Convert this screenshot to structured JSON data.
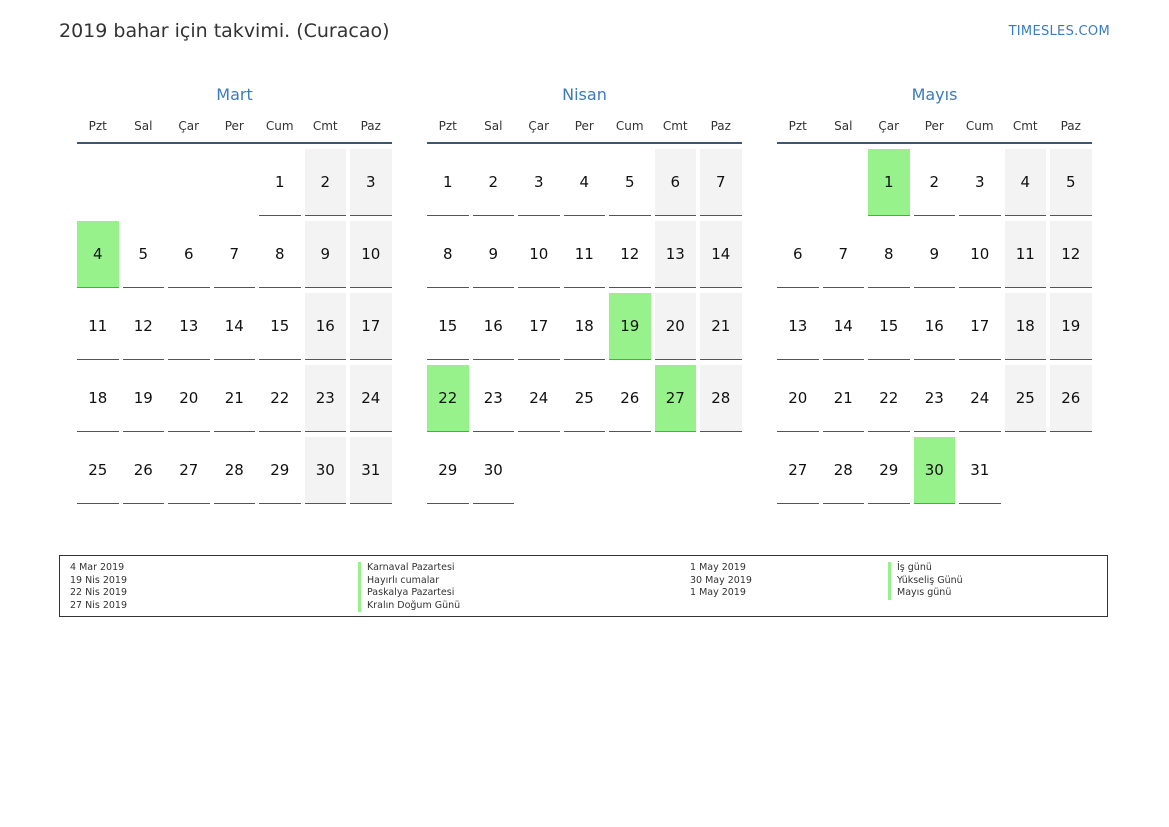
{
  "header": {
    "title": "2019 bahar için takvimi. (Curacao)",
    "site": "TIMESLES.COM"
  },
  "weekdays": [
    "Pzt",
    "Sal",
    "Çar",
    "Per",
    "Cum",
    "Cmt",
    "Paz"
  ],
  "months": [
    {
      "name": "Mart",
      "offset": 4,
      "days": 31,
      "holidays": [
        4
      ]
    },
    {
      "name": "Nisan",
      "offset": 0,
      "days": 30,
      "holidays": [
        19,
        22,
        27
      ]
    },
    {
      "name": "Mayıs",
      "offset": 2,
      "days": 31,
      "holidays": [
        1,
        30
      ]
    }
  ],
  "legend": {
    "left": [
      {
        "date": "4 Mar 2019",
        "name": "Karnaval Pazartesi"
      },
      {
        "date": "19 Nis 2019",
        "name": "Hayırlı cumalar"
      },
      {
        "date": "22 Nis 2019",
        "name": "Paskalya Pazartesi"
      },
      {
        "date": "27 Nis 2019",
        "name": "Kralın Doğum Günü"
      }
    ],
    "right": [
      {
        "date": "1 May 2019",
        "name": "İş günü"
      },
      {
        "date": "30 May 2019",
        "name": "Yükseliş Günü"
      },
      {
        "date": "1 May 2019",
        "name": "Mayıs günü"
      }
    ]
  },
  "colors": {
    "holiday": "#98f28c",
    "weekend": "#f3f3f3",
    "accent": "#3a7bbf"
  }
}
